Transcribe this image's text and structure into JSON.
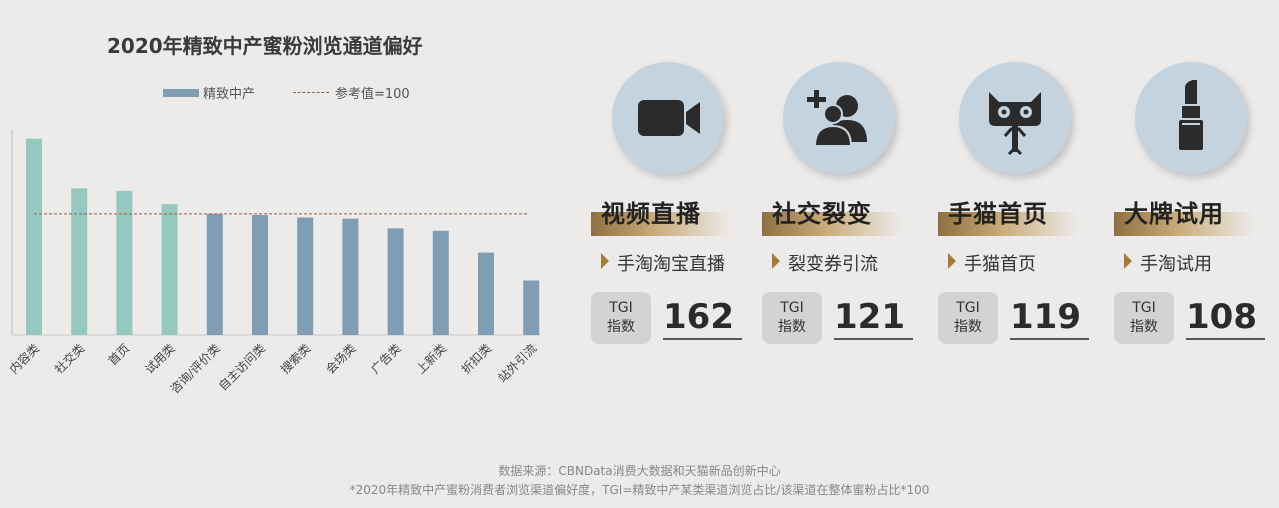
{
  "chart_data": {
    "type": "bar",
    "title": "2020年精致中产蜜粉浏览通道偏好",
    "categories": [
      "内容类",
      "社交类",
      "首页",
      "试用类",
      "咨询/评价类",
      "自主访问类",
      "搜索类",
      "会场类",
      "广告类",
      "上新类",
      "折扣类",
      "站外引流"
    ],
    "series": [
      {
        "name": "精致中产",
        "values": [
          162,
          121,
          119,
          108,
          100,
          99,
          97,
          96,
          88,
          86,
          68,
          45
        ]
      }
    ],
    "highlight_categories": [
      "内容类",
      "社交类",
      "首页",
      "试用类"
    ],
    "reference_line": {
      "label": "参考值=100",
      "value": 100
    },
    "ylim": [
      0,
      170
    ],
    "colors": {
      "highlight": "#96c9be",
      "normal": "#7f9db3",
      "reference": "#9b5a4a"
    },
    "legend_position": "top"
  },
  "cards": [
    {
      "icon": "video-camera-icon",
      "title": "视频直播",
      "subtitle": "手淘淘宝直播",
      "tgi_label_1": "TGI",
      "tgi_label_2": "指数",
      "tgi_value": "162"
    },
    {
      "icon": "social-group-icon",
      "title": "社交裂变",
      "subtitle": "裂变券引流",
      "tgi_label_1": "TGI",
      "tgi_label_2": "指数",
      "tgi_value": "121"
    },
    {
      "icon": "tmall-cat-icon",
      "title": "手猫首页",
      "subtitle": "手猫首页",
      "tgi_label_1": "TGI",
      "tgi_label_2": "指数",
      "tgi_value": "119"
    },
    {
      "icon": "lipstick-icon",
      "title": "大牌试用",
      "subtitle": "手淘试用",
      "tgi_label_1": "TGI",
      "tgi_label_2": "指数",
      "tgi_value": "108"
    }
  ],
  "footer": {
    "source": "数据来源：CBNData消费大数据和天猫新品创新中心",
    "note": "*2020年精致中产蜜粉消费者浏览渠道偏好度，TGI=精致中产某类渠道浏览占比/该渠道在整体蜜粉占比*100"
  }
}
